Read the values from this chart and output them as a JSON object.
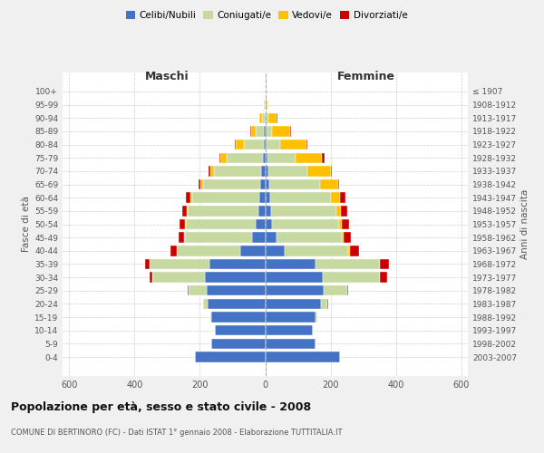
{
  "age_groups": [
    "0-4",
    "5-9",
    "10-14",
    "15-19",
    "20-24",
    "25-29",
    "30-34",
    "35-39",
    "40-44",
    "45-49",
    "50-54",
    "55-59",
    "60-64",
    "65-69",
    "70-74",
    "75-79",
    "80-84",
    "85-89",
    "90-94",
    "95-99",
    "100+"
  ],
  "birth_years": [
    "2003-2007",
    "1998-2002",
    "1993-1997",
    "1988-1992",
    "1983-1987",
    "1978-1982",
    "1973-1977",
    "1968-1972",
    "1963-1967",
    "1958-1962",
    "1953-1957",
    "1948-1952",
    "1943-1947",
    "1938-1942",
    "1933-1937",
    "1928-1932",
    "1923-1927",
    "1918-1922",
    "1913-1917",
    "1908-1912",
    "≤ 1907"
  ],
  "males": {
    "celibi": [
      215,
      165,
      155,
      165,
      175,
      180,
      185,
      170,
      75,
      40,
      28,
      22,
      18,
      14,
      12,
      8,
      5,
      3,
      2,
      0,
      0
    ],
    "coniugati": [
      0,
      0,
      0,
      3,
      15,
      55,
      160,
      185,
      195,
      205,
      215,
      215,
      205,
      175,
      145,
      110,
      60,
      25,
      8,
      2,
      0
    ],
    "vedovi": [
      0,
      0,
      0,
      0,
      0,
      0,
      0,
      0,
      1,
      2,
      2,
      3,
      5,
      8,
      12,
      18,
      25,
      15,
      8,
      2,
      0
    ],
    "divorziati": [
      0,
      0,
      0,
      0,
      0,
      3,
      8,
      12,
      18,
      18,
      18,
      15,
      15,
      8,
      5,
      5,
      2,
      2,
      0,
      0,
      0
    ]
  },
  "females": {
    "nubili": [
      230,
      155,
      145,
      155,
      170,
      180,
      175,
      155,
      60,
      35,
      22,
      18,
      15,
      12,
      10,
      8,
      5,
      3,
      2,
      0,
      0
    ],
    "coniugate": [
      0,
      0,
      0,
      5,
      20,
      70,
      175,
      195,
      195,
      200,
      205,
      200,
      185,
      155,
      120,
      85,
      40,
      18,
      8,
      2,
      0
    ],
    "vedove": [
      0,
      0,
      0,
      0,
      0,
      0,
      2,
      2,
      3,
      5,
      8,
      15,
      28,
      55,
      70,
      80,
      80,
      55,
      25,
      5,
      2
    ],
    "divorziate": [
      0,
      0,
      0,
      0,
      2,
      5,
      20,
      28,
      28,
      22,
      22,
      18,
      18,
      5,
      5,
      8,
      3,
      2,
      2,
      0,
      0
    ]
  },
  "colors": {
    "celibi": "#4472c4",
    "coniugati": "#c5d9a0",
    "vedovi": "#ffc000",
    "divorziati": "#cc0000"
  },
  "legend_labels": [
    "Celibi/Nubili",
    "Coniugati/e",
    "Vedovi/e",
    "Divorziati/e"
  ],
  "xlim": 620,
  "title": "Popolazione per età, sesso e stato civile - 2008",
  "subtitle": "COMUNE DI BERTINORO (FC) - Dati ISTAT 1° gennaio 2008 - Elaborazione TUTTITALIA.IT",
  "ylabel_left": "Fasce di età",
  "ylabel_right": "Anni di nascita",
  "xlabel_left": "Maschi",
  "xlabel_right": "Femmine",
  "bg_color": "#f0f0f0",
  "plot_bg_color": "#ffffff",
  "grid_color": "#cccccc"
}
